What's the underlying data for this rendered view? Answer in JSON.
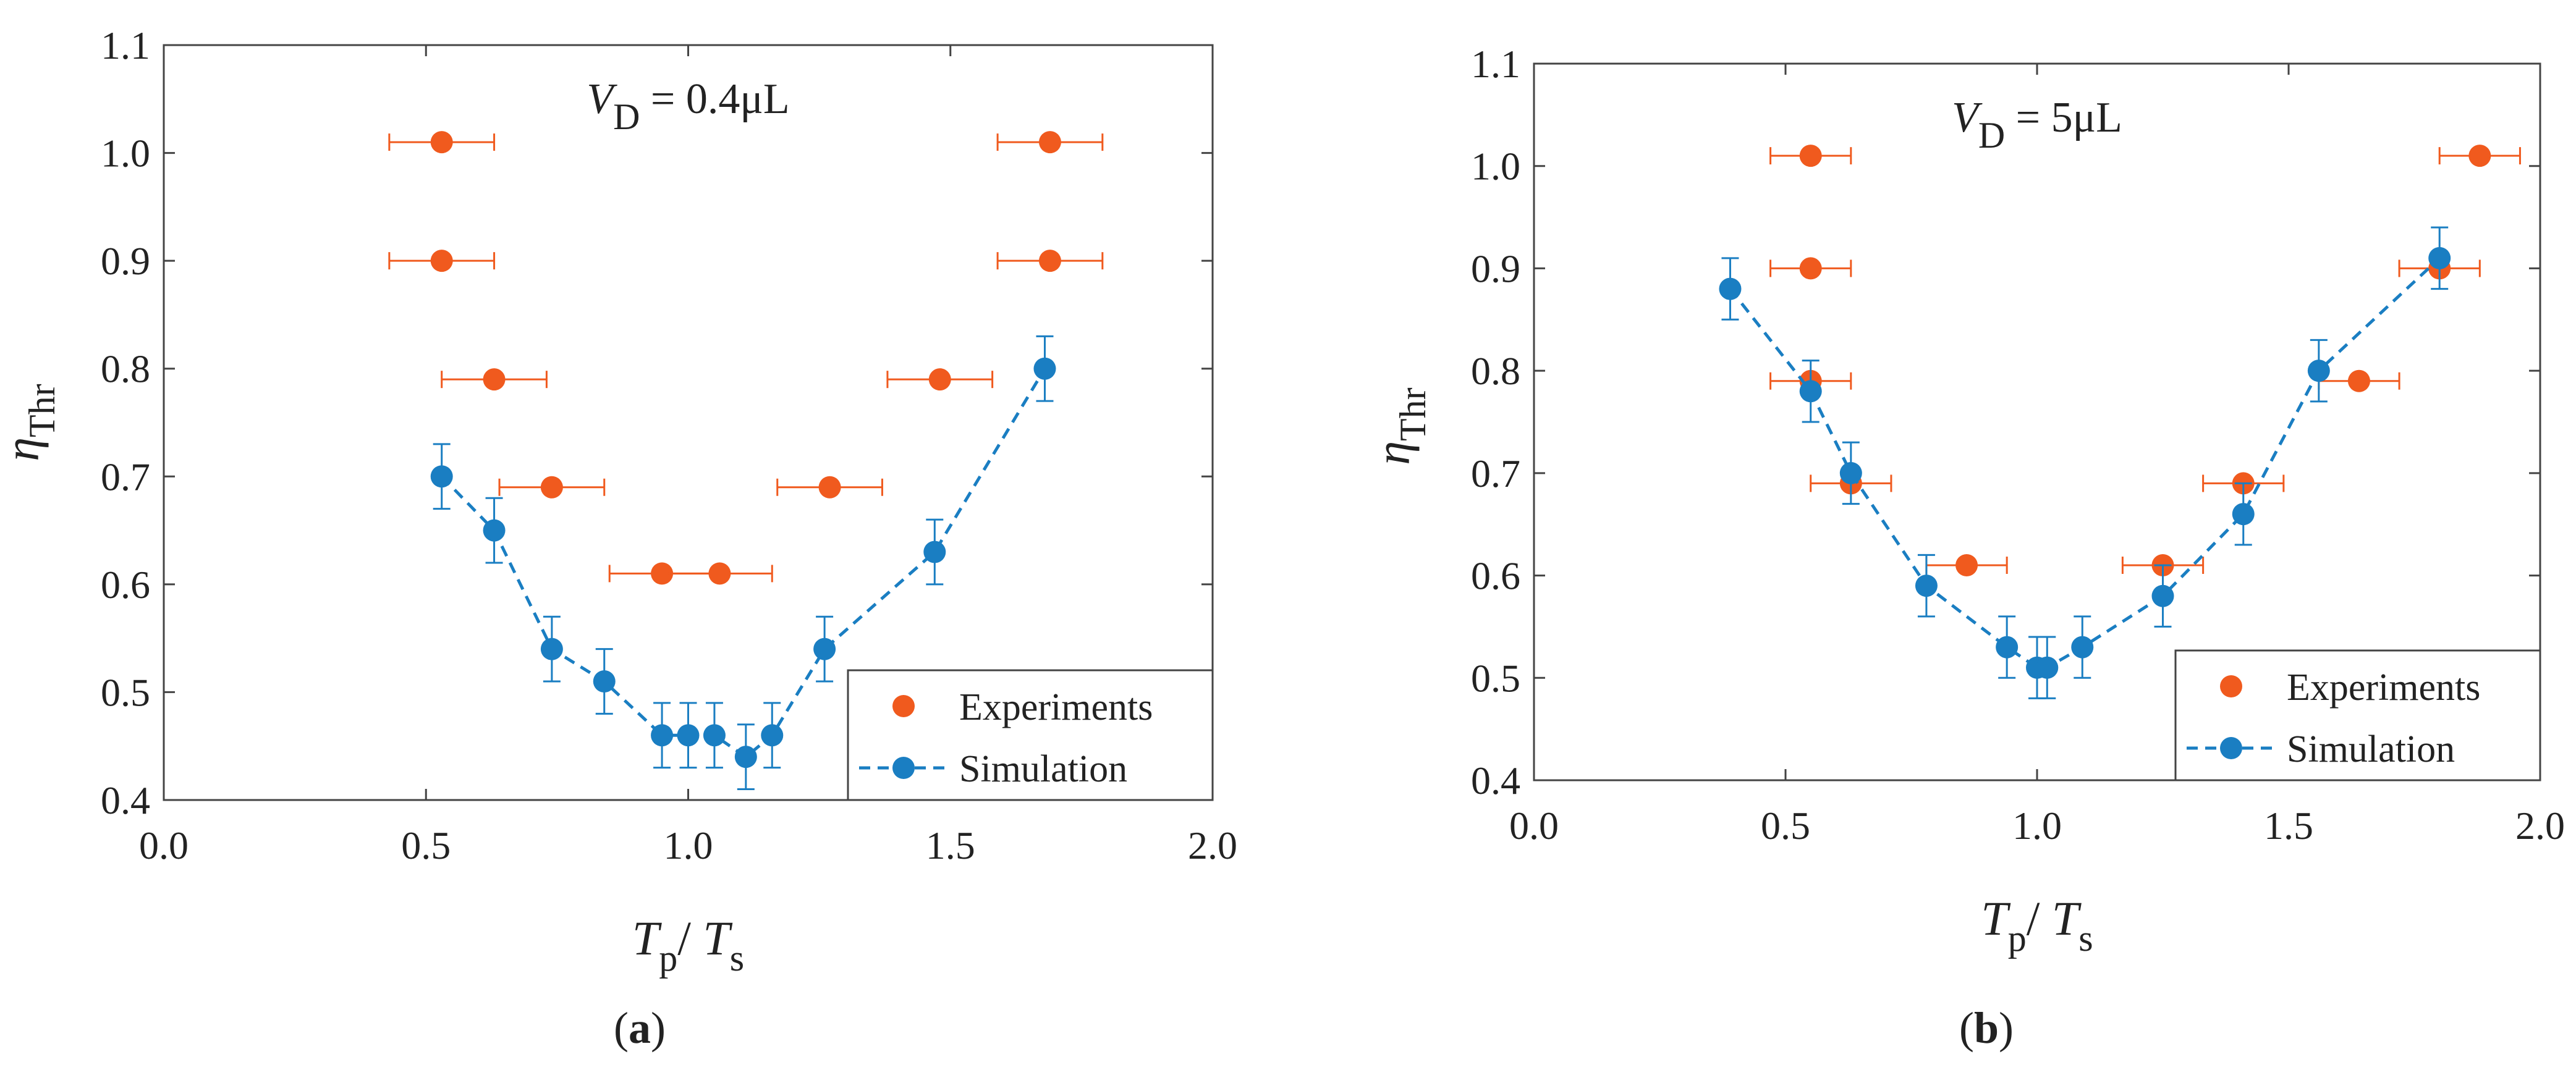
{
  "chart_data": [
    {
      "type": "scatter",
      "panel_label": "(a)",
      "annotation": {
        "var": "V",
        "sub": "D",
        "rest": " = 0.4μL"
      },
      "xlabel": {
        "var1": "T",
        "sub1": "p",
        "sep": "/ ",
        "var2": "T",
        "sub2": "s"
      },
      "ylabel": {
        "var": "η",
        "sub": "Thr"
      },
      "xlim": [
        0.0,
        2.0
      ],
      "ylim": [
        0.4,
        1.1
      ],
      "xticks": [
        0.0,
        0.5,
        1.0,
        1.5,
        2.0
      ],
      "xtick_labels": [
        "0.0",
        "0.5",
        "1.0",
        "1.5",
        "2.0"
      ],
      "yticks": [
        0.4,
        0.5,
        0.6,
        0.7,
        0.8,
        0.9,
        1.0,
        1.1
      ],
      "ytick_labels": [
        "0.4",
        "0.5",
        "0.6",
        "0.7",
        "0.8",
        "0.9",
        "1.0",
        "1.1"
      ],
      "legend_position": "bottom-right",
      "series": [
        {
          "name": "Experiments",
          "color": "#f05a1e",
          "line": false,
          "error": "x",
          "points": [
            {
              "x": 0.53,
              "y": 1.01,
              "err": 0.1
            },
            {
              "x": 0.53,
              "y": 0.9,
              "err": 0.1
            },
            {
              "x": 0.63,
              "y": 0.79,
              "err": 0.1
            },
            {
              "x": 0.74,
              "y": 0.69,
              "err": 0.1
            },
            {
              "x": 0.95,
              "y": 0.61,
              "err": 0.1
            },
            {
              "x": 1.06,
              "y": 0.61,
              "err": 0.1
            },
            {
              "x": 1.27,
              "y": 0.69,
              "err": 0.1
            },
            {
              "x": 1.48,
              "y": 0.79,
              "err": 0.1
            },
            {
              "x": 1.69,
              "y": 0.9,
              "err": 0.1
            },
            {
              "x": 1.69,
              "y": 1.01,
              "err": 0.1
            }
          ]
        },
        {
          "name": "Simulation",
          "color": "#1a7ec2",
          "line": true,
          "error": "y",
          "points": [
            {
              "x": 0.53,
              "y": 0.7,
              "err": 0.03
            },
            {
              "x": 0.63,
              "y": 0.65,
              "err": 0.03
            },
            {
              "x": 0.74,
              "y": 0.54,
              "err": 0.03
            },
            {
              "x": 0.84,
              "y": 0.51,
              "err": 0.03
            },
            {
              "x": 0.95,
              "y": 0.46,
              "err": 0.03
            },
            {
              "x": 1.0,
              "y": 0.46,
              "err": 0.03
            },
            {
              "x": 1.05,
              "y": 0.46,
              "err": 0.03
            },
            {
              "x": 1.11,
              "y": 0.44,
              "err": 0.03
            },
            {
              "x": 1.16,
              "y": 0.46,
              "err": 0.03
            },
            {
              "x": 1.26,
              "y": 0.54,
              "err": 0.03
            },
            {
              "x": 1.47,
              "y": 0.63,
              "err": 0.03
            },
            {
              "x": 1.68,
              "y": 0.8,
              "err": 0.03
            }
          ]
        }
      ]
    },
    {
      "type": "scatter",
      "panel_label": "(b)",
      "annotation": {
        "var": "V",
        "sub": "D",
        "rest": " = 5μL"
      },
      "xlabel": {
        "var1": "T",
        "sub1": "p",
        "sep": "/ ",
        "var2": "T",
        "sub2": "s"
      },
      "ylabel": {
        "var": "η",
        "sub": "Thr"
      },
      "xlim": [
        0.0,
        2.0
      ],
      "ylim": [
        0.4,
        1.1
      ],
      "xticks": [
        0.0,
        0.5,
        1.0,
        1.5,
        2.0
      ],
      "xtick_labels": [
        "0.0",
        "0.5",
        "1.0",
        "1.5",
        "2.0"
      ],
      "yticks": [
        0.4,
        0.5,
        0.6,
        0.7,
        0.8,
        0.9,
        1.0,
        1.1
      ],
      "ytick_labels": [
        "0.4",
        "0.5",
        "0.6",
        "0.7",
        "0.8",
        "0.9",
        "1.0",
        "1.1"
      ],
      "legend_position": "bottom-right",
      "series": [
        {
          "name": "Experiments",
          "color": "#f05a1e",
          "line": false,
          "error": "x",
          "points": [
            {
              "x": 0.55,
              "y": 1.01,
              "err": 0.08
            },
            {
              "x": 0.55,
              "y": 0.9,
              "err": 0.08
            },
            {
              "x": 0.55,
              "y": 0.79,
              "err": 0.08
            },
            {
              "x": 0.63,
              "y": 0.69,
              "err": 0.08
            },
            {
              "x": 0.86,
              "y": 0.61,
              "err": 0.08
            },
            {
              "x": 1.25,
              "y": 0.61,
              "err": 0.08
            },
            {
              "x": 1.41,
              "y": 0.69,
              "err": 0.08
            },
            {
              "x": 1.64,
              "y": 0.79,
              "err": 0.08
            },
            {
              "x": 1.8,
              "y": 0.9,
              "err": 0.08
            },
            {
              "x": 1.88,
              "y": 1.01,
              "err": 0.08
            }
          ]
        },
        {
          "name": "Simulation",
          "color": "#1a7ec2",
          "line": true,
          "error": "y",
          "points": [
            {
              "x": 0.39,
              "y": 0.88,
              "err": 0.03
            },
            {
              "x": 0.55,
              "y": 0.78,
              "err": 0.03
            },
            {
              "x": 0.63,
              "y": 0.7,
              "err": 0.03
            },
            {
              "x": 0.78,
              "y": 0.59,
              "err": 0.03
            },
            {
              "x": 0.94,
              "y": 0.53,
              "err": 0.03
            },
            {
              "x": 1.0,
              "y": 0.51,
              "err": 0.03
            },
            {
              "x": 1.02,
              "y": 0.51,
              "err": 0.03
            },
            {
              "x": 1.09,
              "y": 0.53,
              "err": 0.03
            },
            {
              "x": 1.25,
              "y": 0.58,
              "err": 0.03
            },
            {
              "x": 1.41,
              "y": 0.66,
              "err": 0.03
            },
            {
              "x": 1.56,
              "y": 0.8,
              "err": 0.03
            },
            {
              "x": 1.8,
              "y": 0.91,
              "err": 0.03
            }
          ]
        }
      ]
    }
  ]
}
